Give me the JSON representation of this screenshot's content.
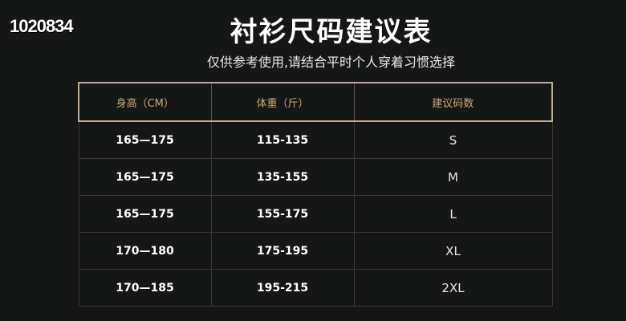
{
  "corner_text": "1020834",
  "title": "衬衫尺码建议表",
  "subtitle": "仅供参考使用,请结合平时个人穿着习惯选择",
  "table": {
    "headers": [
      "身高（CM）",
      "体重（斤）",
      "建议码数"
    ],
    "rows": [
      [
        "165—175",
        "115-135",
        "S"
      ],
      [
        "165—175",
        "135-155",
        "M"
      ],
      [
        "165—175",
        "155-175",
        "L"
      ],
      [
        "170—180",
        "175-195",
        "XL"
      ],
      [
        "170—185",
        "195-215",
        "2XL"
      ]
    ]
  }
}
